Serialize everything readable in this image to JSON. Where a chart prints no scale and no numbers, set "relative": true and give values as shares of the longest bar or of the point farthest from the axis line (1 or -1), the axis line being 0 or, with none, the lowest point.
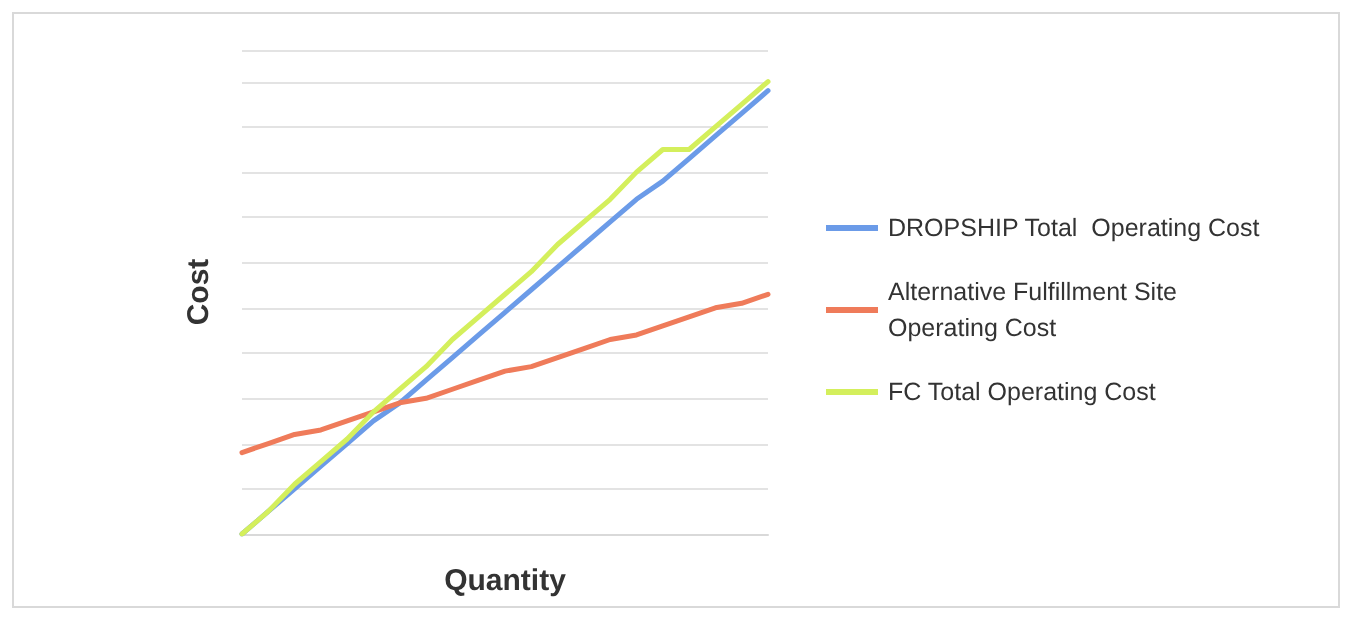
{
  "chart_data": {
    "type": "line",
    "relative": true,
    "xlabel": "Quantity",
    "ylabel": "Cost",
    "grid": "y",
    "legend": "right",
    "marker": "none",
    "line_style": "solid",
    "categories": [
      null,
      null,
      null,
      null,
      null,
      null,
      null,
      null,
      null,
      null,
      null,
      null,
      null,
      null,
      null,
      null,
      null,
      null,
      null,
      null,
      null
    ],
    "series": [
      {
        "name": "DROPSHIP Total  Operating Cost",
        "color": "#6b9be8",
        "values": [
          0,
          0.05,
          0.1,
          0.15,
          0.2,
          0.25,
          0.29,
          0.34,
          0.39,
          0.44,
          0.49,
          0.54,
          0.59,
          0.64,
          0.69,
          0.74,
          0.78,
          0.83,
          0.88,
          0.93,
          0.98
        ]
      },
      {
        "name": "Alternative Fulfillment Site Operating Cost",
        "color": "#ef7b5a",
        "values": [
          0.18,
          0.2,
          0.22,
          0.23,
          0.25,
          0.27,
          0.29,
          0.3,
          0.32,
          0.34,
          0.36,
          0.37,
          0.39,
          0.41,
          0.43,
          0.44,
          0.46,
          0.48,
          0.5,
          0.51,
          0.53
        ]
      },
      {
        "name": "FC Total Operating Cost",
        "color": "#d4ef5c",
        "values": [
          0,
          0.05,
          0.11,
          0.16,
          0.21,
          0.27,
          0.32,
          0.37,
          0.43,
          0.48,
          0.53,
          0.58,
          0.64,
          0.69,
          0.74,
          0.8,
          0.85,
          0.85,
          0.9,
          0.95,
          1.0
        ]
      }
    ]
  }
}
